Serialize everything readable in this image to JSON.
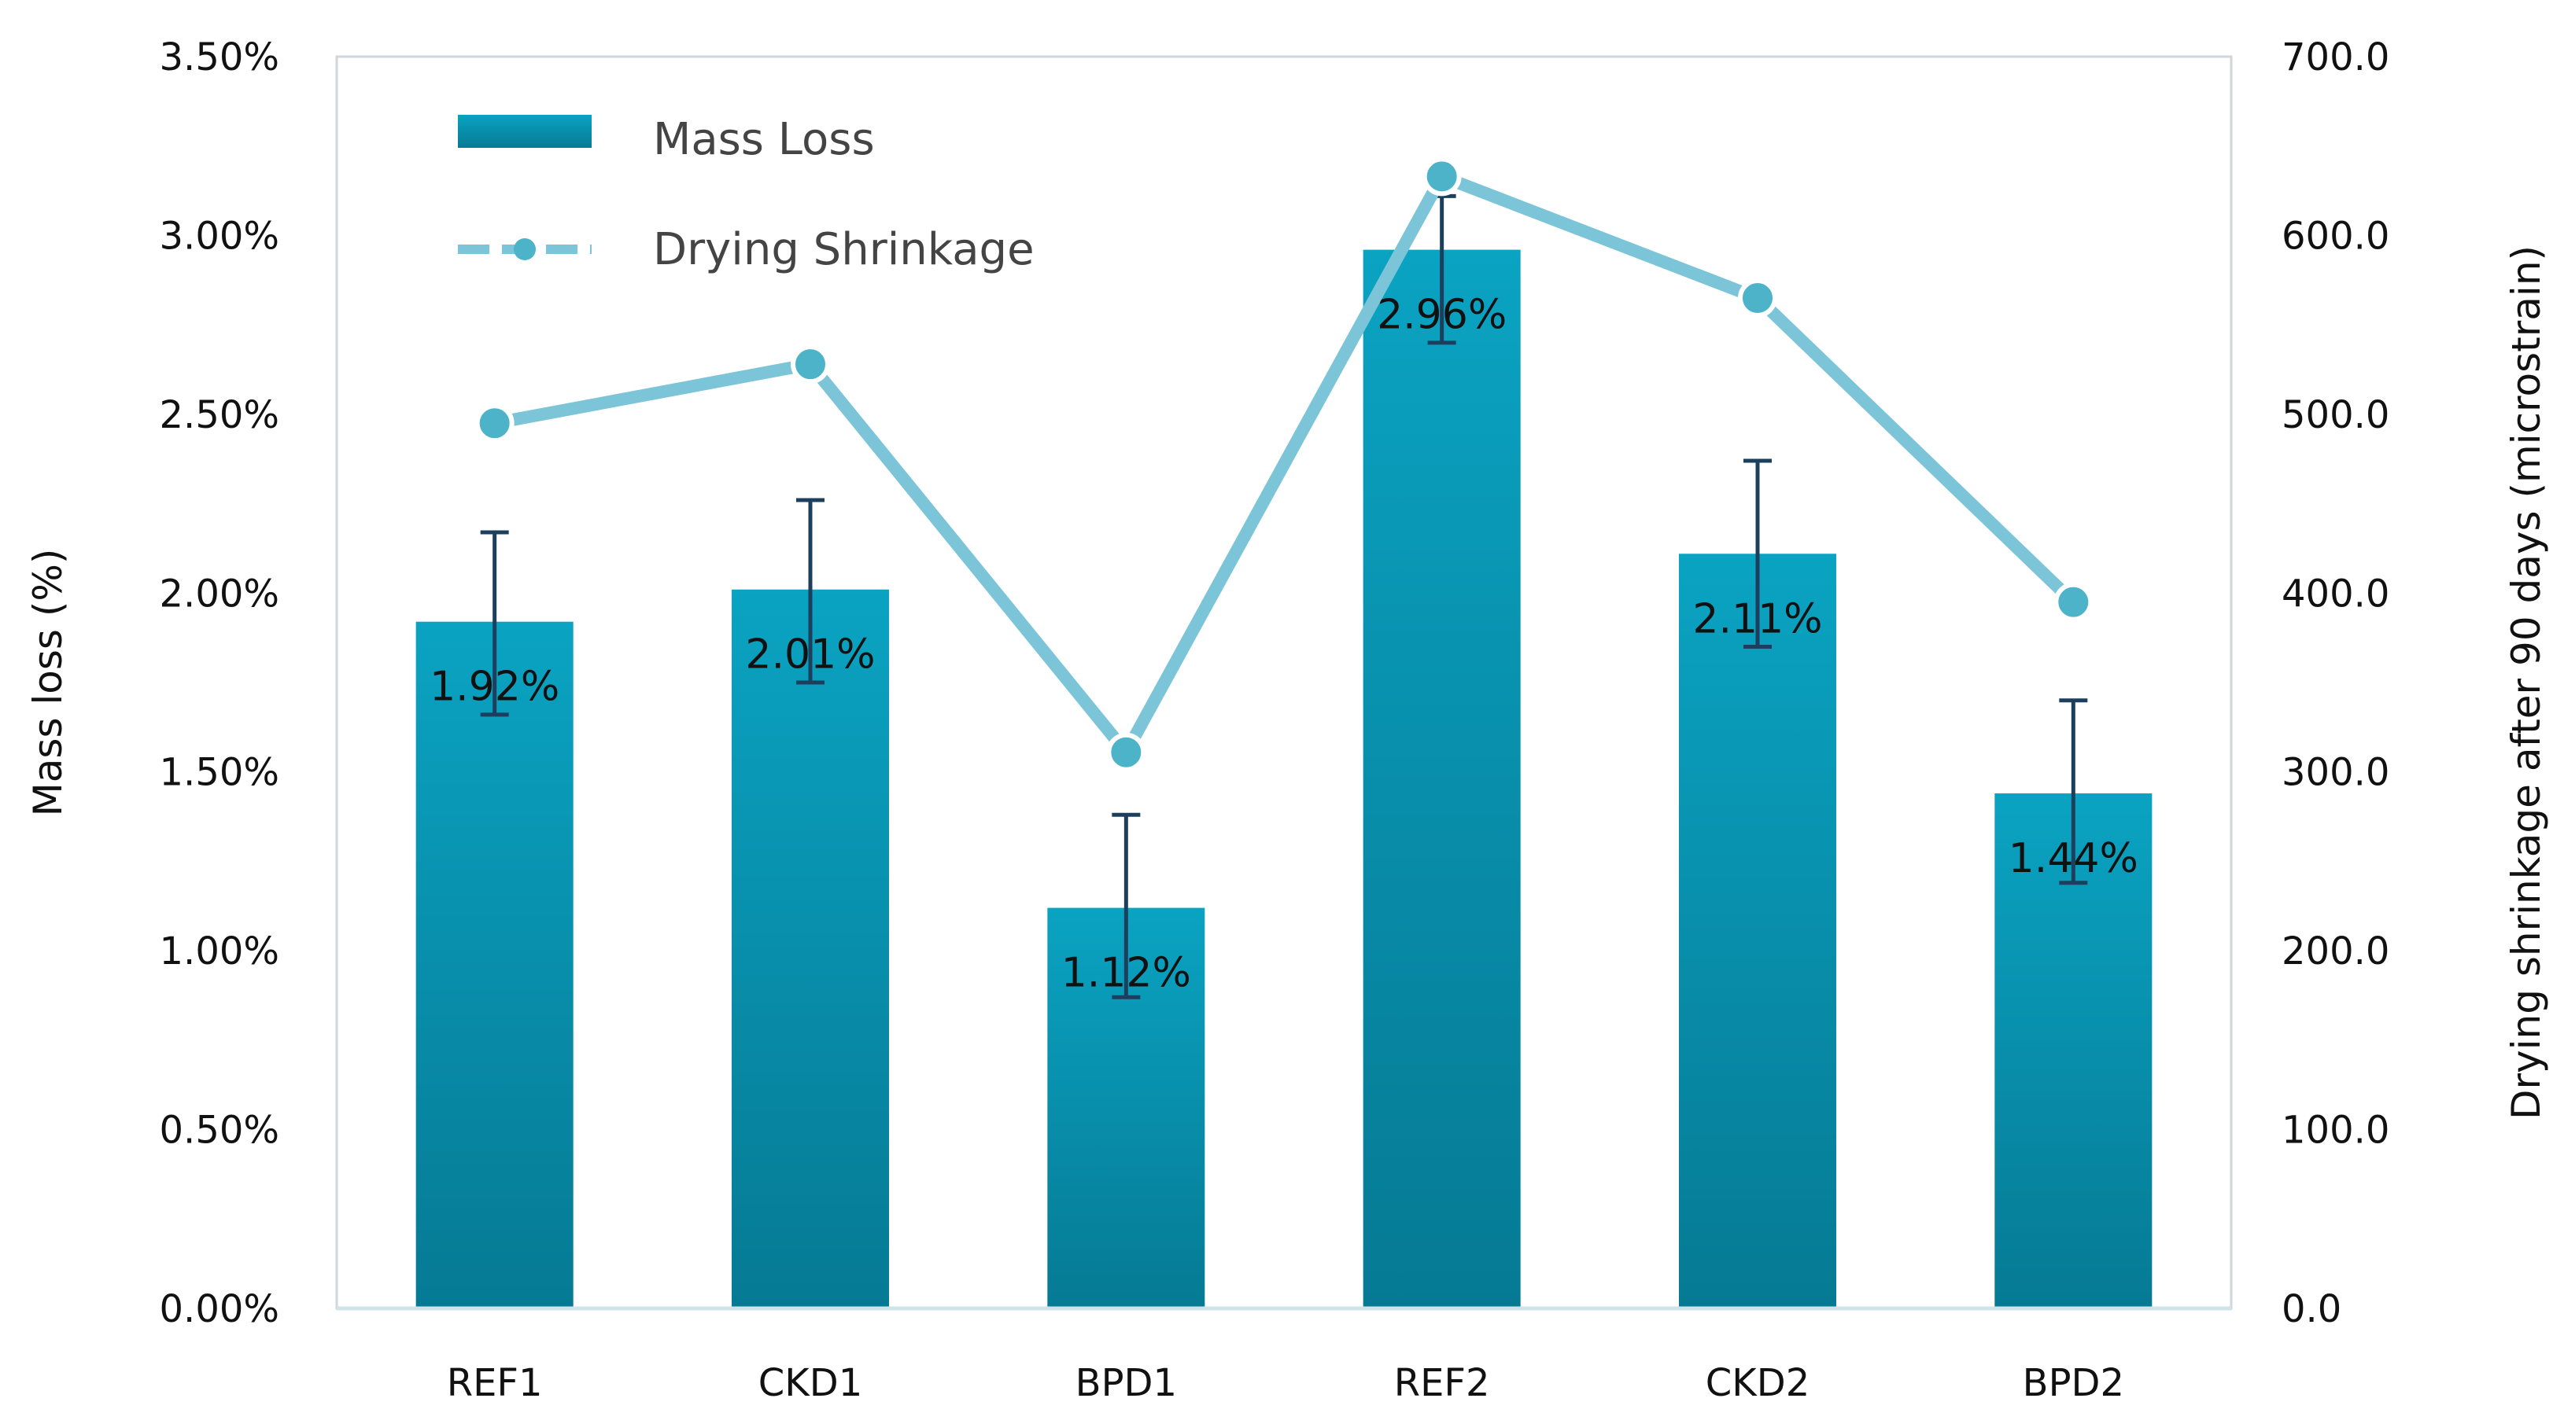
{
  "chart_data": {
    "type": "bar",
    "categories": [
      "REF1",
      "CKD1",
      "BPD1",
      "REF2",
      "CKD2",
      "BPD2"
    ],
    "series": [
      {
        "name": "Mass Loss",
        "kind": "bar",
        "axis": "left",
        "values": [
          1.92,
          2.01,
          1.12,
          2.96,
          2.11,
          1.44
        ],
        "error_low": [
          1.66,
          1.75,
          0.87,
          2.7,
          1.85,
          1.19
        ],
        "error_high": [
          2.17,
          2.26,
          1.38,
          3.11,
          2.37,
          1.7
        ],
        "labels": [
          "1.92%",
          "2.01%",
          "1.12%",
          "2.96%",
          "2.11%",
          "1.44%"
        ],
        "color": "#0a9bb8"
      },
      {
        "name": "Drying Shrinkage",
        "kind": "line",
        "axis": "right",
        "values": [
          495,
          528,
          311,
          633,
          565,
          395
        ],
        "color": "#7cc5d8",
        "marker_color": "#4db3c9"
      }
    ],
    "y_left": {
      "label": "Mass loss (%)",
      "ylim": [
        0,
        3.5
      ],
      "ticks": [
        "0.00%",
        "0.50%",
        "1.00%",
        "1.50%",
        "2.00%",
        "2.50%",
        "3.00%",
        "3.50%"
      ]
    },
    "y_right": {
      "label": "Drying shrinkage after 90 days (microstrain)",
      "ylim": [
        0,
        700
      ],
      "ticks": [
        "0.0",
        "100.0",
        "200.0",
        "300.0",
        "400.0",
        "500.0",
        "600.0",
        "700.0"
      ]
    },
    "legend": {
      "placement": "top-left",
      "items": [
        "Mass Loss",
        "Drying Shrinkage"
      ]
    }
  }
}
